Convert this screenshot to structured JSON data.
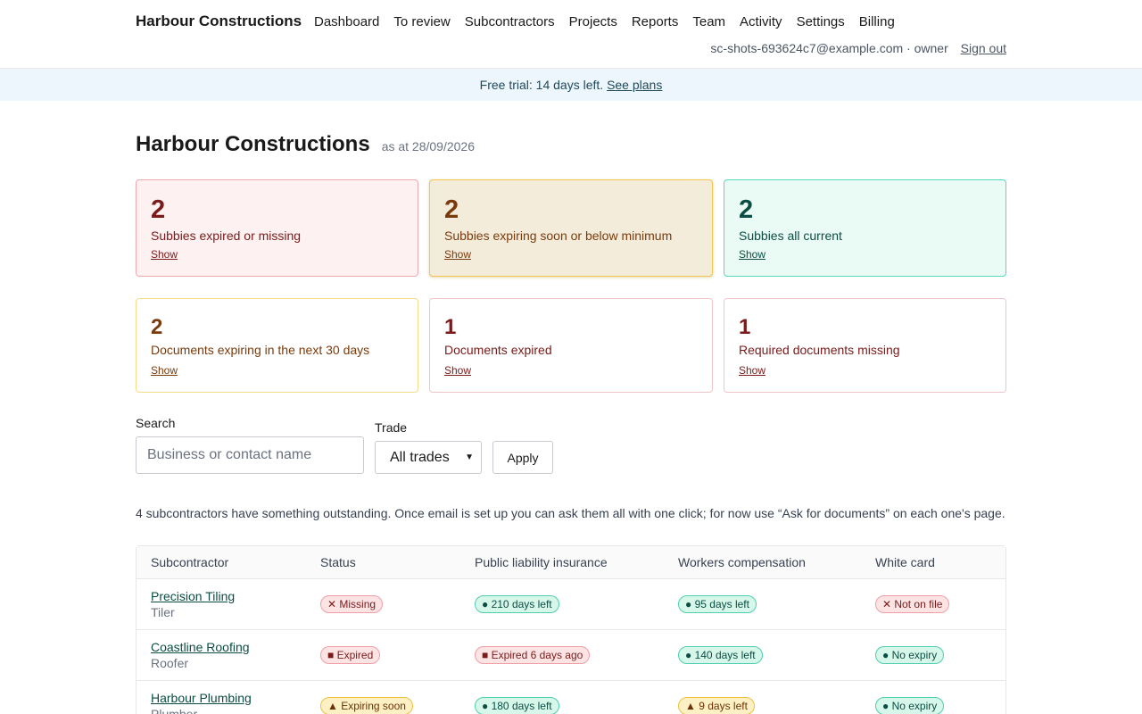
{
  "header": {
    "brand": "Harbour Constructions",
    "nav": [
      "Dashboard",
      "To review",
      "Subcontractors",
      "Projects",
      "Reports",
      "Team",
      "Activity",
      "Settings",
      "Billing"
    ],
    "user_info": "sc-shots-693624c7@example.com · owner",
    "sign_out": "Sign out"
  },
  "trial": {
    "text": "Free trial: 14 days left.",
    "link": "See plans"
  },
  "page": {
    "title": "Harbour Constructions",
    "as_at": "as at 28/09/2026"
  },
  "summary_cards": [
    {
      "count": "2",
      "label": "Subbies expired or missing",
      "show": "Show",
      "tone": "#7a1a1a"
    },
    {
      "count": "2",
      "label": "Subbies expiring soon or below minimum",
      "show": "Show",
      "tone": "#7a3b0c"
    },
    {
      "count": "2",
      "label": "Subbies all current",
      "show": "Show",
      "tone": "#0b4d44"
    }
  ],
  "doc_cards": [
    {
      "count": "2",
      "label": "Documents expiring in the next 30 days",
      "show": "Show"
    },
    {
      "count": "1",
      "label": "Documents expired",
      "show": "Show"
    },
    {
      "count": "1",
      "label": "Required documents missing",
      "show": "Show"
    }
  ],
  "filters": {
    "search_label": "Search",
    "search_placeholder": "Business or contact name",
    "trade_label": "Trade",
    "trade_value": "All trades",
    "apply": "Apply"
  },
  "note": "4 subcontractors have something outstanding. Once email is set up you can ask them all with one click; for now use “Ask for documents” on each one's page.",
  "table": {
    "headers": [
      "Subcontractor",
      "Status",
      "Public liability insurance",
      "Workers compensation",
      "White card"
    ],
    "rows": [
      {
        "name": "Precision Tiling",
        "trade": "Tiler",
        "status": "✕ Missing",
        "pli": "● 210 days left",
        "wc": "● 95 days left",
        "white_card": "✕ Not on file"
      },
      {
        "name": "Coastline Roofing",
        "trade": "Roofer",
        "status": "■ Expired",
        "pli": "■ Expired 6 days ago",
        "wc": "● 140 days left",
        "white_card": "● No expiry"
      },
      {
        "name": "Harbour Plumbing",
        "trade": "Plumber",
        "status": "▲ Expiring soon",
        "pli": "● 180 days left",
        "wc": "▲ 9 days left",
        "white_card": "● No expiry"
      }
    ]
  },
  "colors": {
    "accent_green": "#0b4d44",
    "danger": "#7a1a1a",
    "warning": "#7a3b0c",
    "banner_bg": "#eef6fd"
  }
}
